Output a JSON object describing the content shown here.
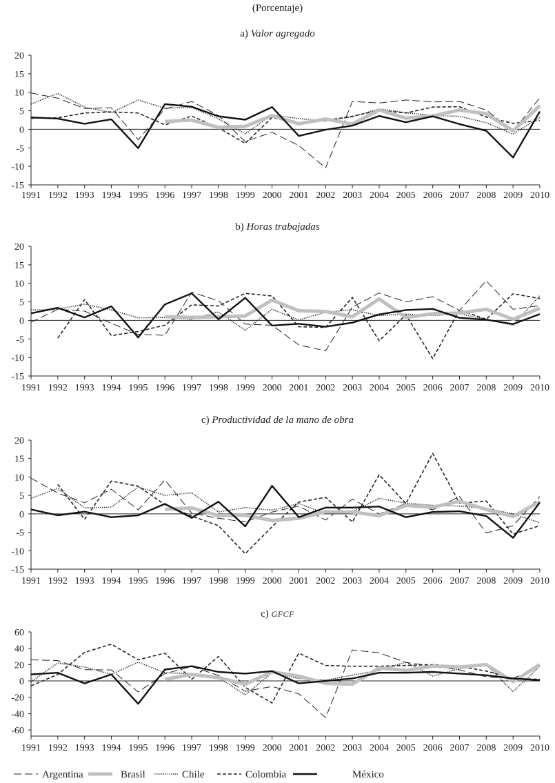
{
  "header": {
    "unit": "(Porcentaje)"
  },
  "legend": {
    "placement": "bottom"
  },
  "chart_data": [
    {
      "type": "line",
      "prefix": "a)",
      "title": "Valor agregado",
      "x": [
        1991,
        1992,
        1993,
        1994,
        1995,
        1996,
        1997,
        1998,
        1999,
        2000,
        2001,
        2002,
        2003,
        2004,
        2005,
        2006,
        2007,
        2008,
        2009,
        2010
      ],
      "ylim": [
        -15,
        20
      ],
      "yticks": [
        -15,
        -10,
        -5,
        0,
        5,
        10,
        15,
        20
      ],
      "grid": false,
      "series": [
        {
          "name": "Argentina",
          "values": [
            9.8,
            8.4,
            5.6,
            5.8,
            -2.8,
            5.5,
            7.5,
            3.7,
            -3.3,
            -0.8,
            -4.4,
            -10.4,
            7.5,
            7.1,
            7.9,
            7.4,
            7.5,
            5.2,
            -0.5,
            8.5
          ]
        },
        {
          "name": "Brasil",
          "values": [
            null,
            null,
            null,
            null,
            null,
            2.1,
            2.5,
            0.5,
            0.8,
            3.7,
            1.5,
            2.8,
            1.4,
            5.2,
            3.0,
            3.6,
            5.2,
            4.2,
            -0.4,
            6.4
          ]
        },
        {
          "name": "Chile",
          "values": [
            6.8,
            9.7,
            6.0,
            4.5,
            7.9,
            5.7,
            5.9,
            2.8,
            -1.2,
            3.9,
            2.9,
            2.2,
            3.4,
            5.5,
            4.5,
            3.7,
            3.5,
            1.8,
            -1.3,
            3.2
          ]
        },
        {
          "name": "Colombia",
          "values": [
            3.0,
            3.1,
            4.4,
            4.7,
            4.4,
            1.2,
            3.6,
            0.4,
            -3.8,
            3.2,
            1.4,
            2.4,
            3.5,
            5.1,
            4.4,
            6.0,
            6.1,
            3.3,
            1.6,
            2.4
          ]
        },
        {
          "name": "México",
          "values": [
            3.2,
            2.9,
            1.5,
            2.7,
            -5.1,
            6.8,
            6.1,
            3.5,
            2.6,
            6.0,
            -1.8,
            -0.1,
            1.0,
            3.6,
            1.9,
            3.5,
            1.4,
            -0.4,
            -7.6,
            4.8
          ]
        }
      ]
    },
    {
      "type": "line",
      "prefix": "b)",
      "title": "Horas trabajadas",
      "x": [
        1991,
        1992,
        1993,
        1994,
        1995,
        1996,
        1997,
        1998,
        1999,
        2000,
        2001,
        2002,
        2003,
        2004,
        2005,
        2006,
        2007,
        2008,
        2009,
        2010
      ],
      "ylim": [
        -15,
        20
      ],
      "yticks": [
        -15,
        -10,
        -5,
        0,
        5,
        10,
        15,
        20
      ],
      "grid": false,
      "series": [
        {
          "name": "Argentina",
          "values": [
            -0.5,
            3.0,
            2.5,
            -0.8,
            -3.8,
            -4.0,
            7.6,
            5.3,
            -1.0,
            -1.3,
            -6.6,
            -8.2,
            3.6,
            7.4,
            5.0,
            6.4,
            2.7,
            10.7,
            3.0,
            4.0
          ]
        },
        {
          "name": "Brasil",
          "values": [
            null,
            null,
            null,
            null,
            null,
            1.0,
            0.8,
            1.0,
            1.2,
            5.5,
            2.6,
            2.4,
            1.0,
            5.8,
            0.8,
            1.8,
            2.0,
            3.0,
            0.3,
            3.3
          ]
        },
        {
          "name": "Chile",
          "values": [
            2.8,
            3.0,
            4.4,
            2.8,
            0.7,
            0.8,
            0.3,
            2.3,
            -2.7,
            3.0,
            0.1,
            2.2,
            2.9,
            1.3,
            1.7,
            1.3,
            1.8,
            0.3,
            -1.3,
            6.7
          ]
        },
        {
          "name": "Colombia",
          "values": [
            null,
            -4.8,
            5.6,
            -4.1,
            -3.0,
            -1.3,
            4.2,
            3.9,
            7.3,
            6.6,
            -1.7,
            -1.9,
            6.2,
            -5.5,
            1.5,
            -10.3,
            2.8,
            0.3,
            7.2,
            5.9
          ]
        },
        {
          "name": "México",
          "values": [
            1.9,
            3.4,
            0.8,
            3.8,
            -4.6,
            4.3,
            7.3,
            0.3,
            6.1,
            -1.4,
            -0.9,
            -1.7,
            -0.6,
            1.6,
            2.8,
            3.1,
            0.7,
            0.2,
            -1.0,
            1.7
          ]
        }
      ]
    },
    {
      "type": "line",
      "prefix": "c)",
      "title": "Productividad de la mano de obra",
      "x": [
        1991,
        1992,
        1993,
        1994,
        1995,
        1996,
        1997,
        1998,
        1999,
        2000,
        2001,
        2002,
        2003,
        2004,
        2005,
        2006,
        2007,
        2008,
        2009,
        2010
      ],
      "ylim": [
        -15,
        20
      ],
      "yticks": [
        -15,
        -10,
        -5,
        0,
        5,
        10,
        15,
        20
      ],
      "grid": false,
      "series": [
        {
          "name": "Argentina",
          "values": [
            9.7,
            5.6,
            3.0,
            6.7,
            1.1,
            9.2,
            0.2,
            -1.2,
            -2.2,
            0.5,
            2.1,
            -1.7,
            4.0,
            0.0,
            2.8,
            1.1,
            4.7,
            -5.2,
            -3.2,
            4.7
          ]
        },
        {
          "name": "Brasil",
          "values": [
            null,
            null,
            null,
            null,
            null,
            1.2,
            1.6,
            -0.5,
            -0.4,
            -1.8,
            -1.2,
            0.6,
            0.5,
            -0.5,
            2.3,
            1.8,
            3.4,
            1.2,
            -0.7,
            3.3
          ]
        },
        {
          "name": "Chile",
          "values": [
            4.2,
            6.9,
            1.6,
            1.8,
            7.3,
            5.0,
            5.7,
            0.5,
            1.7,
            1.0,
            2.8,
            0.1,
            0.6,
            4.2,
            2.9,
            2.3,
            2.1,
            1.5,
            0.0,
            -2.4
          ]
        },
        {
          "name": "Colombia",
          "values": [
            null,
            8.0,
            -1.5,
            8.9,
            7.5,
            2.5,
            -0.6,
            -3.2,
            -10.8,
            -3.5,
            3.2,
            4.5,
            -2.2,
            10.6,
            2.8,
            16.4,
            2.9,
            3.5,
            -5.5,
            -3.2
          ]
        },
        {
          "name": "México",
          "values": [
            1.2,
            -0.4,
            0.6,
            -0.9,
            -0.4,
            2.7,
            -1.1,
            3.3,
            -3.4,
            7.6,
            -0.9,
            1.7,
            1.7,
            2.0,
            -0.9,
            0.5,
            0.7,
            -0.6,
            -6.5,
            3.1
          ]
        }
      ]
    },
    {
      "type": "line",
      "prefix": "c)",
      "title": "GFCF",
      "x": [
        1991,
        1992,
        1993,
        1994,
        1995,
        1996,
        1997,
        1998,
        1999,
        2000,
        2001,
        2002,
        2003,
        2004,
        2005,
        2006,
        2007,
        2008,
        2009,
        2010
      ],
      "ylim": [
        -67.5,
        60
      ],
      "yticks": [
        -60,
        -40,
        -20,
        0,
        20,
        40,
        60
      ],
      "grid": false,
      "series": [
        {
          "name": "Argentina",
          "values": [
            25.8,
            25.0,
            13.8,
            13.5,
            -13.5,
            8.9,
            17.7,
            6.7,
            -12.6,
            -6.8,
            -15.7,
            -45.0,
            38.0,
            34.4,
            22.7,
            18.2,
            13.6,
            5.0,
            3.0,
            18.0
          ]
        },
        {
          "name": "Brasil",
          "values": [
            null,
            null,
            null,
            null,
            null,
            2,
            8,
            4,
            -4,
            11,
            6,
            -3,
            -4,
            16,
            13,
            18,
            17,
            20,
            -1,
            20
          ]
        },
        {
          "name": "Chile",
          "values": [
            -1,
            22,
            17,
            8,
            23,
            10,
            9,
            4,
            -17,
            10,
            3,
            1,
            7,
            13,
            23,
            6,
            15,
            20,
            -13,
            18
          ]
        },
        {
          "name": "Colombia",
          "values": [
            -6,
            8,
            35,
            45,
            26,
            34,
            2,
            30,
            -8,
            -27,
            34,
            19,
            18,
            18,
            19,
            20,
            18,
            12,
            3,
            2
          ]
        },
        {
          "name": "México",
          "values": [
            8,
            10,
            -3,
            8,
            -28,
            14,
            18,
            11,
            9,
            12,
            -3,
            0,
            3,
            10,
            10,
            11,
            9,
            7,
            3,
            1
          ]
        }
      ]
    }
  ],
  "series_styles": {
    "Argentina": {
      "color": "#222222",
      "style": "long-dash"
    },
    "Brasil": {
      "color": "#c0c0c0",
      "style": "thick-solid"
    },
    "Chile": {
      "color": "#222222",
      "style": "dotted"
    },
    "Colombia": {
      "color": "#222222",
      "style": "short-dash"
    },
    "México": {
      "color": "#111111",
      "style": "solid"
    }
  }
}
